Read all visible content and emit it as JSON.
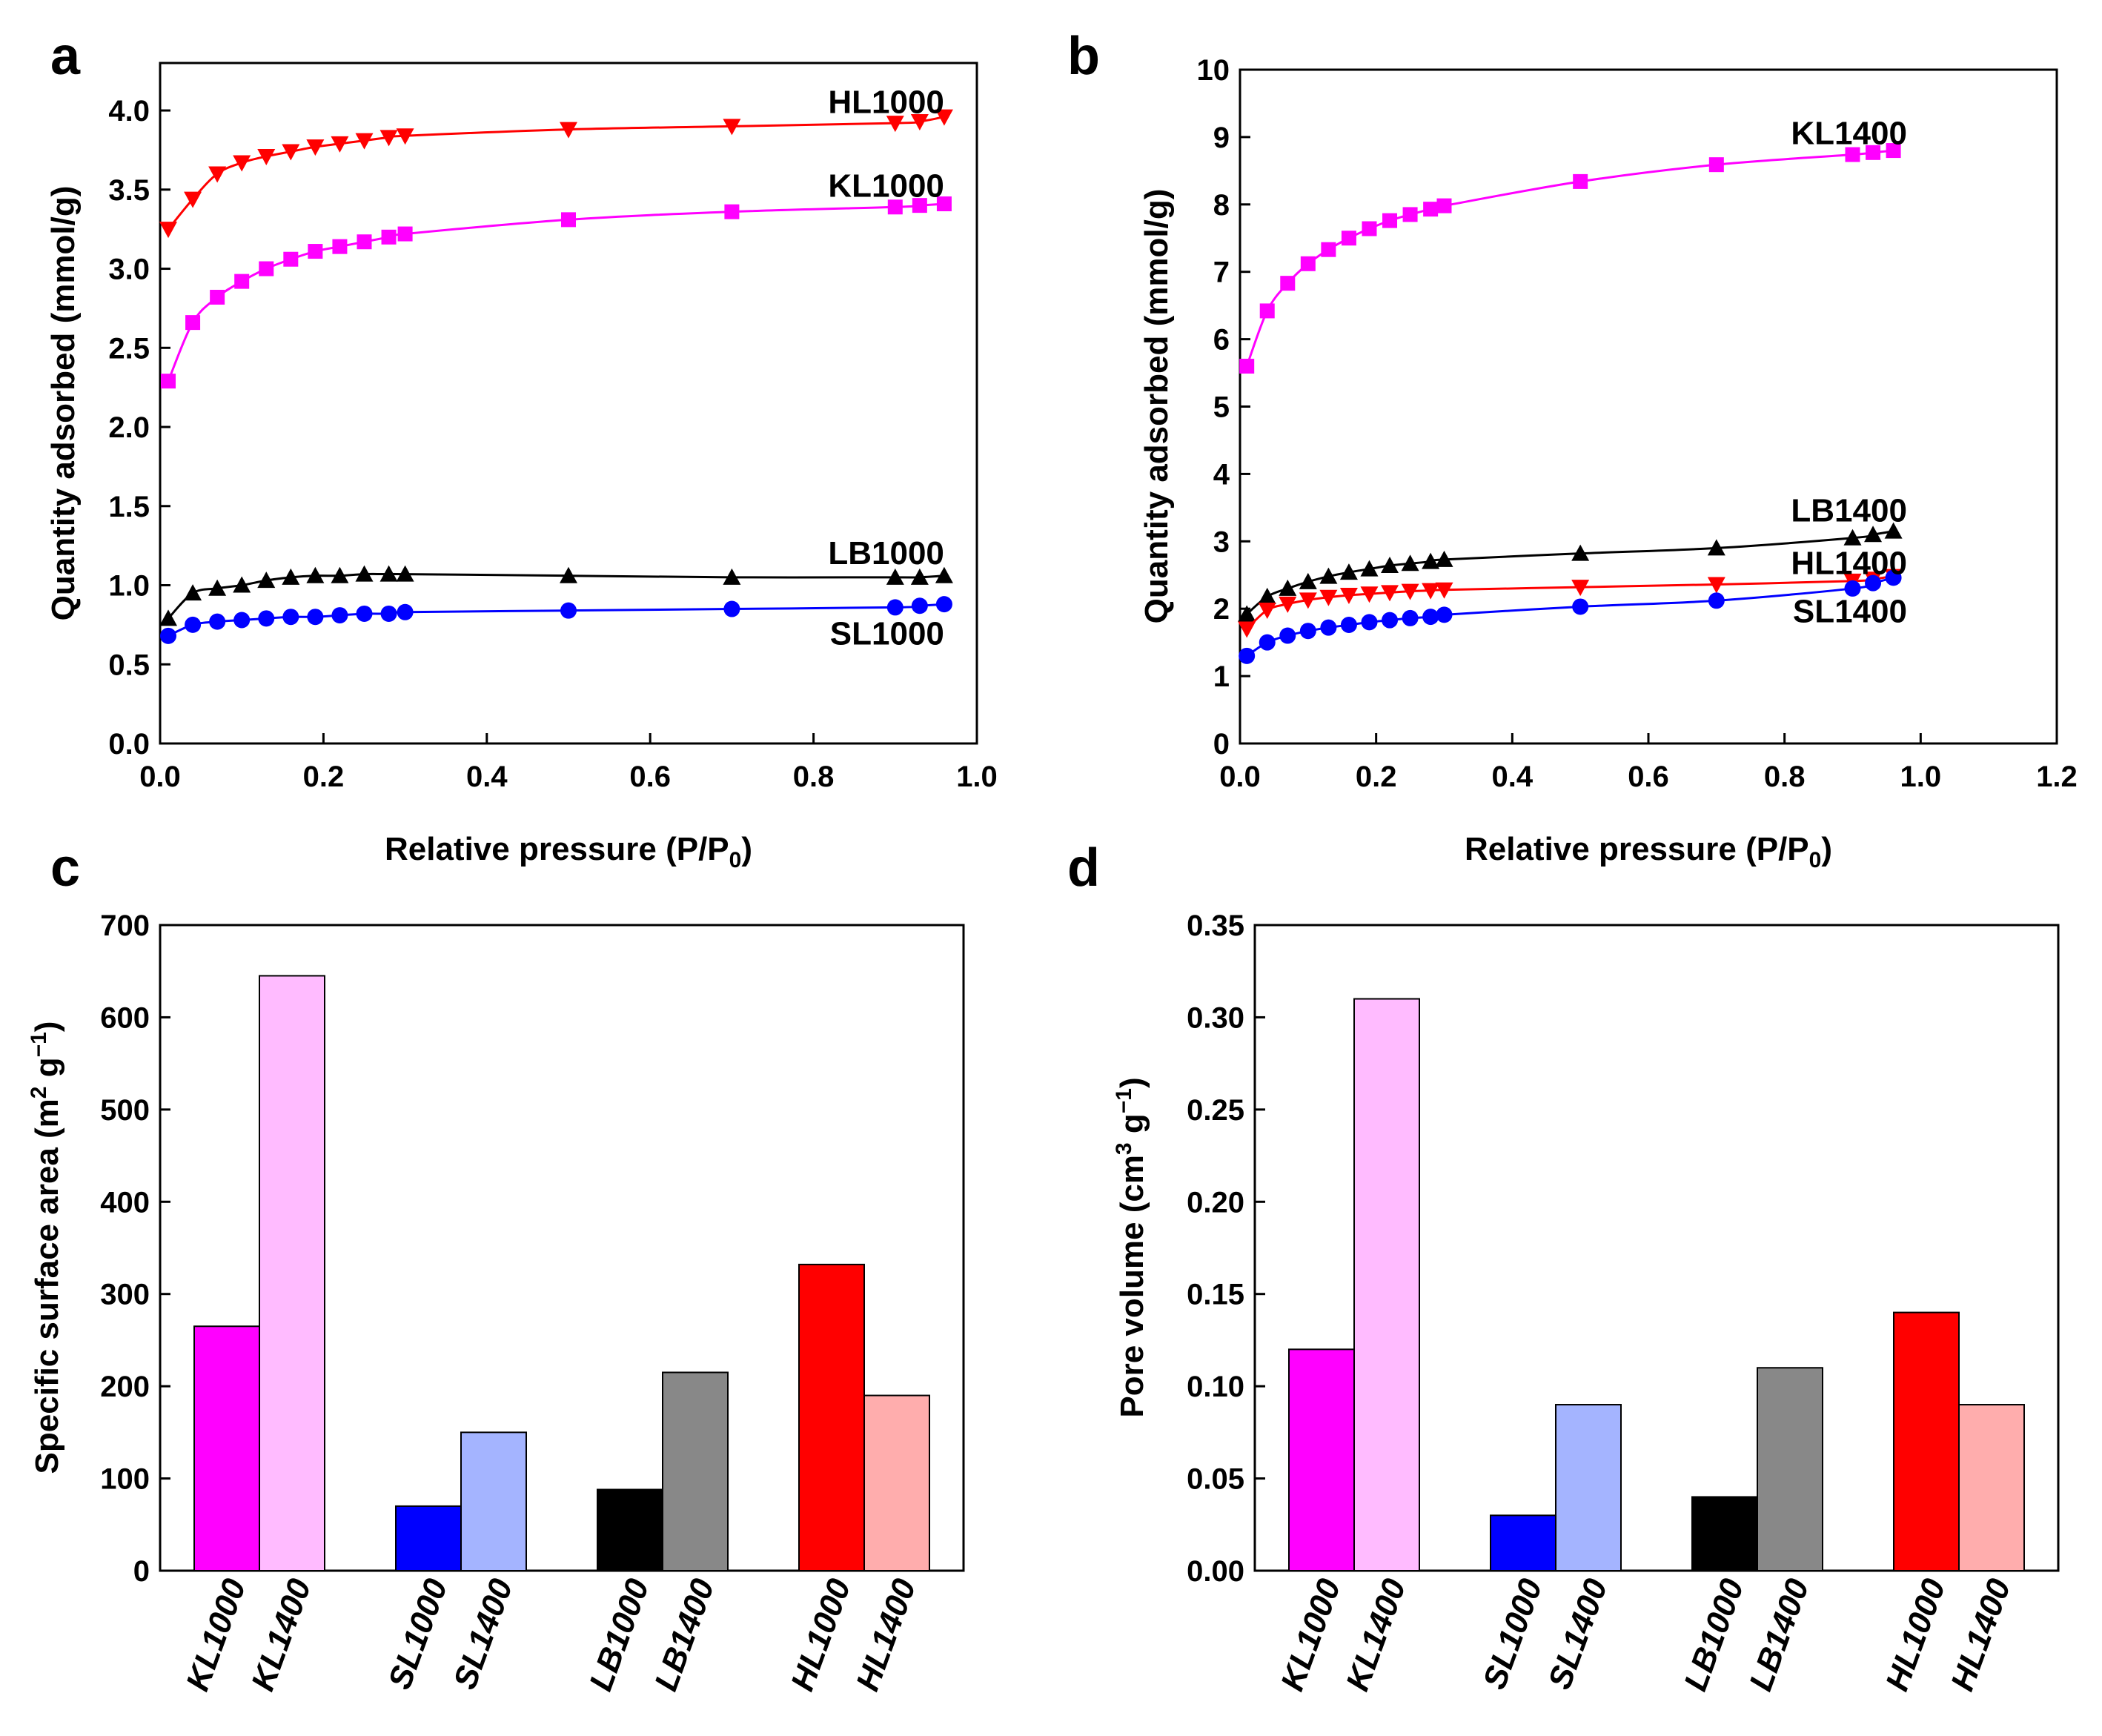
{
  "chart_data": [
    {
      "panel": "a",
      "type": "line",
      "xlabel": "Relative pressure (P/P0)",
      "ylabel": "Quantity adsorbed (mmol/g)",
      "xlim": [
        0.0,
        1.0
      ],
      "ylim": [
        0.0,
        4.3
      ],
      "xticks": [
        0.0,
        0.2,
        0.4,
        0.6,
        0.8,
        1.0
      ],
      "yticks": [
        0.0,
        0.5,
        1.0,
        1.5,
        2.0,
        2.5,
        3.0,
        3.5,
        4.0
      ],
      "x": [
        0.01,
        0.04,
        0.07,
        0.1,
        0.13,
        0.16,
        0.19,
        0.22,
        0.25,
        0.28,
        0.3,
        0.5,
        0.7,
        0.9,
        0.93,
        0.96
      ],
      "series": [
        {
          "name": "HL1000",
          "color": "#ff0000",
          "marker": "triangle-down",
          "values": [
            3.25,
            3.44,
            3.6,
            3.67,
            3.71,
            3.74,
            3.77,
            3.79,
            3.81,
            3.83,
            3.84,
            3.88,
            3.9,
            3.92,
            3.93,
            3.96
          ]
        },
        {
          "name": "KL1000",
          "color": "#ff00ff",
          "marker": "square",
          "values": [
            2.29,
            2.66,
            2.82,
            2.92,
            3.0,
            3.06,
            3.11,
            3.14,
            3.17,
            3.2,
            3.22,
            3.31,
            3.36,
            3.39,
            3.4,
            3.41
          ]
        },
        {
          "name": "LB1000",
          "color": "#000000",
          "marker": "triangle-up",
          "values": [
            0.79,
            0.95,
            0.98,
            1.0,
            1.03,
            1.05,
            1.06,
            1.06,
            1.07,
            1.07,
            1.07,
            1.06,
            1.05,
            1.05,
            1.05,
            1.06
          ]
        },
        {
          "name": "SL1000",
          "color": "#0000ff",
          "marker": "circle",
          "values": [
            0.68,
            0.75,
            0.77,
            0.78,
            0.79,
            0.8,
            0.8,
            0.81,
            0.82,
            0.82,
            0.83,
            0.84,
            0.85,
            0.86,
            0.87,
            0.88
          ]
        }
      ],
      "labels": [
        {
          "text": "HL1000",
          "x": 0.96,
          "y": 4.05
        },
        {
          "text": "KL1000",
          "x": 0.96,
          "y": 3.52
        },
        {
          "text": "LB1000",
          "x": 0.96,
          "y": 1.2
        },
        {
          "text": "SL1000",
          "x": 0.96,
          "y": 0.69
        }
      ]
    },
    {
      "panel": "b",
      "type": "line",
      "xlabel": "Relative pressure (P/P0)",
      "ylabel": "Quantity adsorbed (mmol/g)",
      "xlim": [
        0.0,
        1.2
      ],
      "ylim": [
        0,
        10
      ],
      "xticks": [
        0.0,
        0.2,
        0.4,
        0.6,
        0.8,
        1.0,
        1.2
      ],
      "yticks": [
        0,
        1,
        2,
        3,
        4,
        5,
        6,
        7,
        8,
        9,
        10
      ],
      "x": [
        0.01,
        0.04,
        0.07,
        0.1,
        0.13,
        0.16,
        0.19,
        0.22,
        0.25,
        0.28,
        0.3,
        0.5,
        0.7,
        0.9,
        0.93,
        0.96
      ],
      "series": [
        {
          "name": "KL1400",
          "color": "#ff00ff",
          "marker": "square",
          "values": [
            5.6,
            6.42,
            6.83,
            7.12,
            7.33,
            7.5,
            7.64,
            7.76,
            7.85,
            7.93,
            7.98,
            8.34,
            8.59,
            8.74,
            8.77,
            8.8
          ]
        },
        {
          "name": "LB1400",
          "color": "#000000",
          "marker": "triangle-up",
          "values": [
            1.92,
            2.18,
            2.3,
            2.4,
            2.48,
            2.54,
            2.59,
            2.64,
            2.67,
            2.7,
            2.73,
            2.82,
            2.9,
            3.05,
            3.1,
            3.15
          ]
        },
        {
          "name": "HL1400",
          "color": "#ff0000",
          "marker": "triangle-down",
          "values": [
            1.7,
            1.98,
            2.07,
            2.13,
            2.17,
            2.2,
            2.22,
            2.24,
            2.26,
            2.27,
            2.28,
            2.32,
            2.36,
            2.41,
            2.44,
            2.48
          ]
        },
        {
          "name": "SL1400",
          "color": "#0000ff",
          "marker": "circle",
          "values": [
            1.3,
            1.5,
            1.6,
            1.67,
            1.72,
            1.76,
            1.8,
            1.83,
            1.86,
            1.88,
            1.91,
            2.03,
            2.12,
            2.3,
            2.38,
            2.46
          ]
        }
      ],
      "labels": [
        {
          "text": "KL1400",
          "x": 0.98,
          "y": 9.05
        },
        {
          "text": "LB1400",
          "x": 0.98,
          "y": 3.45
        },
        {
          "text": "HL1400",
          "x": 0.98,
          "y": 2.67
        },
        {
          "text": "SL1400",
          "x": 0.98,
          "y": 1.95
        }
      ]
    },
    {
      "panel": "c",
      "type": "bar",
      "ylabel": "Specific surface area (m2 g-1)",
      "ylim": [
        0,
        700
      ],
      "yticks": [
        0,
        100,
        200,
        300,
        400,
        500,
        600,
        700
      ],
      "categories": [
        "KL1000",
        "KL1400",
        "SL1000",
        "SL1400",
        "LB1000",
        "LB1400",
        "HL1000",
        "HL1400"
      ],
      "values": [
        265,
        645,
        70,
        150,
        88,
        215,
        332,
        190
      ],
      "colors": [
        "#ff00ff",
        "#ffbbff",
        "#0000ff",
        "#a4b4ff",
        "#000000",
        "#888888",
        "#ff0000",
        "#ffadad"
      ]
    },
    {
      "panel": "d",
      "type": "bar",
      "ylabel": "Pore volume (cm3 g-1)",
      "ylim": [
        0,
        0.35
      ],
      "yticks": [
        0.0,
        0.05,
        0.1,
        0.15,
        0.2,
        0.25,
        0.3,
        0.35
      ],
      "categories": [
        "KL1000",
        "KL1400",
        "SL1000",
        "SL1400",
        "LB1000",
        "LB1400",
        "HL1000",
        "HL1400"
      ],
      "values": [
        0.12,
        0.31,
        0.03,
        0.09,
        0.04,
        0.11,
        0.14,
        0.09
      ],
      "colors": [
        "#ff00ff",
        "#ffbbff",
        "#0000ff",
        "#a4b4ff",
        "#000000",
        "#888888",
        "#ff0000",
        "#ffadad"
      ]
    }
  ],
  "text": {
    "a": "a",
    "b": "b",
    "c": "c",
    "d": "d",
    "xlabel_ab": "Relative pressure (P/P",
    "sub0": "0",
    "close_paren": ")",
    "ylabel_ab": "Quantity adsorbed (mmol/g)",
    "ylabel_c_pre": "Specific surface area (m",
    "ylabel_c_mid": " g",
    "ylabel_c_post": ")",
    "ylabel_d_pre": "Pore volume (cm",
    "ylabel_d_mid": " g",
    "ylabel_d_post": ")",
    "sup2": "2",
    "sup3": "3",
    "supm1": "−1"
  }
}
